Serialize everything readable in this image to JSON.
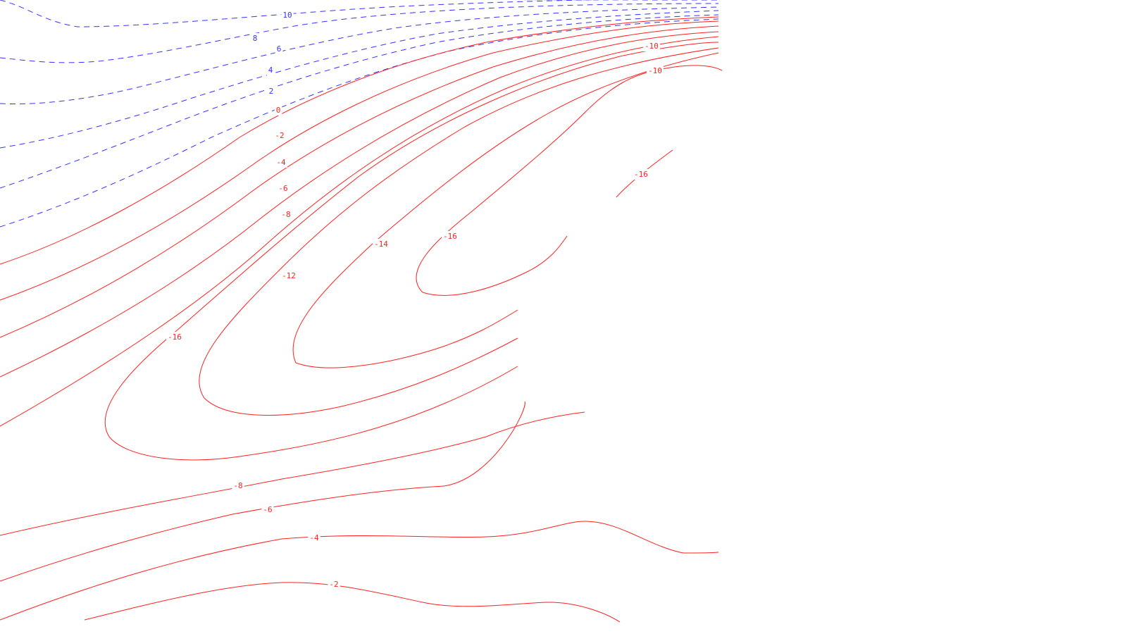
{
  "chart_data": {
    "type": "contour",
    "title": "",
    "xlabel": "",
    "ylabel": "",
    "grid": false,
    "legend": "none",
    "colors": {
      "positive": "#3333ff",
      "negative": "#ff2020"
    },
    "line_styles": {
      "positive": "dashed",
      "zero_and_negative": "solid"
    },
    "contour_levels": [
      12,
      10,
      8,
      6,
      4,
      2,
      0,
      -2,
      -4,
      -6,
      -8,
      -10,
      -12,
      -14,
      -16
    ],
    "labels_shown": [
      {
        "text": "10",
        "level": 10
      },
      {
        "text": "8",
        "level": 8
      },
      {
        "text": "6",
        "level": 6
      },
      {
        "text": "4",
        "level": 4
      },
      {
        "text": "2",
        "level": 2
      },
      {
        "text": "0",
        "level": 0
      },
      {
        "text": "-2",
        "level": -2
      },
      {
        "text": "-4",
        "level": -4
      },
      {
        "text": "-6",
        "level": -6
      },
      {
        "text": "-8",
        "level": -8
      },
      {
        "text": "-10",
        "level": -10
      },
      {
        "text": "-12",
        "level": -12
      },
      {
        "text": "-14",
        "level": -14
      },
      {
        "text": "-16",
        "level": -16
      },
      {
        "text": "-10",
        "level": -10
      },
      {
        "text": "-16",
        "level": -16
      },
      {
        "text": "-16",
        "level": -16
      },
      {
        "text": "-8",
        "level": -8
      },
      {
        "text": "-6",
        "level": -6
      },
      {
        "text": "-4",
        "level": -4
      },
      {
        "text": "-2",
        "level": -2
      }
    ]
  }
}
